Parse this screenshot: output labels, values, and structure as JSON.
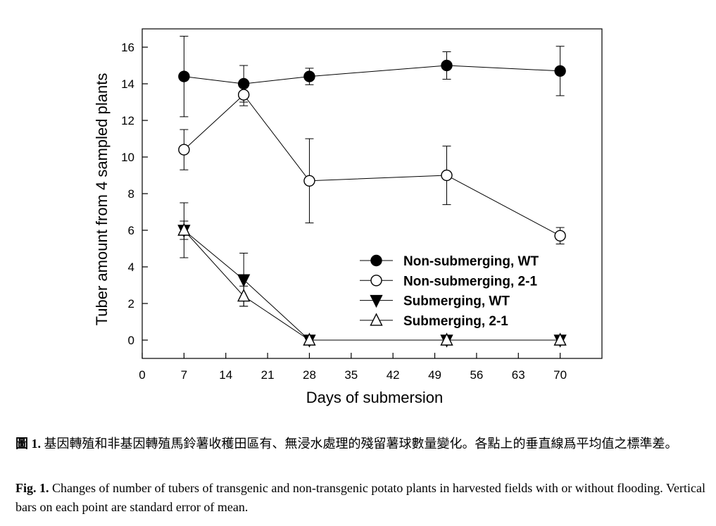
{
  "chart_data": {
    "type": "line",
    "xlabel": "Days of submersion",
    "ylabel": "Tuber amount from 4 sampled plants",
    "xlim": [
      0,
      77
    ],
    "ylim": [
      -1,
      17
    ],
    "xticks": [
      0,
      7,
      14,
      21,
      28,
      35,
      42,
      49,
      56,
      63,
      70
    ],
    "yticks": [
      0,
      2,
      4,
      6,
      8,
      10,
      12,
      14,
      16
    ],
    "grid": false,
    "legend_position": "lower-right",
    "error_bars": "standard error of mean",
    "series": [
      {
        "name": "Non-submerging, WT",
        "marker": "filled-circle",
        "x": [
          7,
          17,
          28,
          51,
          70
        ],
        "y": [
          14.4,
          14.0,
          14.4,
          15.0,
          14.7
        ],
        "err": [
          2.2,
          1.0,
          0.45,
          0.75,
          1.35
        ]
      },
      {
        "name": "Non-submerging, 2-1",
        "marker": "open-circle",
        "x": [
          7,
          17,
          28,
          51,
          70
        ],
        "y": [
          10.4,
          13.4,
          8.7,
          9.0,
          5.7
        ],
        "err": [
          1.1,
          0.6,
          2.3,
          1.6,
          0.45
        ]
      },
      {
        "name": "Submerging, WT",
        "marker": "filled-triangle-down",
        "x": [
          7,
          17,
          28,
          51,
          70
        ],
        "y": [
          6.0,
          3.3,
          0,
          0,
          0
        ],
        "err": [
          1.5,
          1.45,
          0,
          0,
          0
        ]
      },
      {
        "name": "Submerging, 2-1",
        "marker": "open-triangle-up",
        "x": [
          7,
          17,
          28,
          51,
          70
        ],
        "y": [
          6.0,
          2.4,
          0,
          0,
          0
        ],
        "err": [
          0.5,
          0.55,
          0,
          0,
          0
        ]
      }
    ]
  },
  "caption": {
    "zh_label": "圖 1.",
    "zh_text": "基因轉殖和非基因轉殖馬鈴薯收穫田區有、無浸水處理的殘留薯球數量變化。各點上的垂直線爲平均值之標準差。",
    "en_label": "Fig. 1.",
    "en_text": "Changes of number of tubers of transgenic and non-transgenic potato plants in harvested fields with or without flooding. Vertical bars on each point are standard error of mean."
  }
}
